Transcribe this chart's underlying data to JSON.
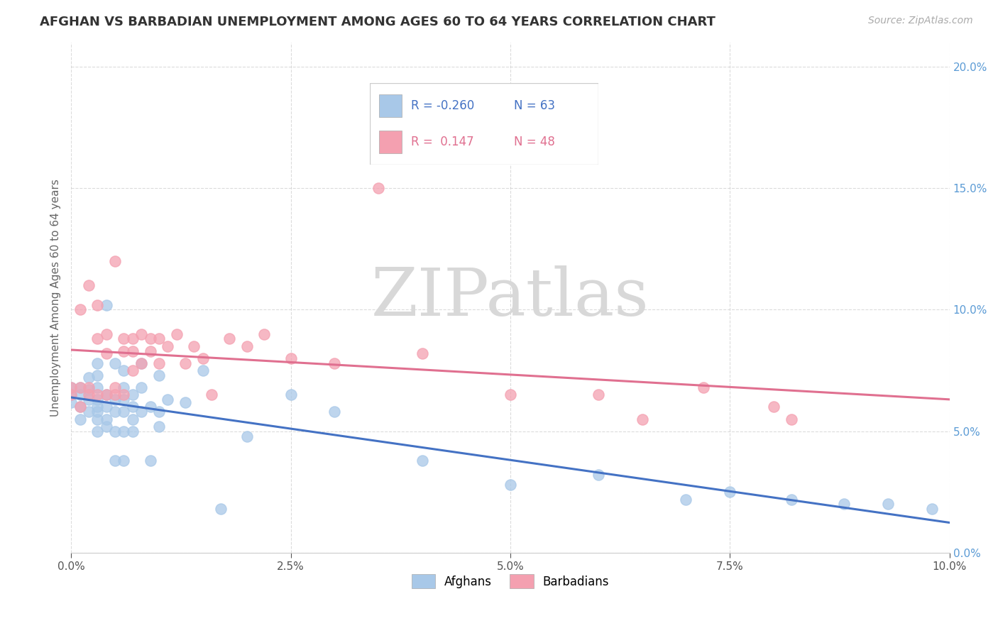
{
  "title": "AFGHAN VS BARBADIAN UNEMPLOYMENT AMONG AGES 60 TO 64 YEARS CORRELATION CHART",
  "source": "Source: ZipAtlas.com",
  "ylabel": "Unemployment Among Ages 60 to 64 years",
  "xmin": 0.0,
  "xmax": 0.1,
  "ymin": 0.0,
  "ymax": 0.21,
  "afghan_R": -0.26,
  "afghan_N": 63,
  "barbadian_R": 0.147,
  "barbadian_N": 48,
  "afghan_color": "#a8c8e8",
  "barbadian_color": "#f4a0b0",
  "afghan_line_color": "#4472c4",
  "barbadian_line_color": "#e07090",
  "background_color": "#ffffff",
  "afghan_scatter_x": [
    0.0,
    0.0,
    0.0,
    0.001,
    0.001,
    0.001,
    0.001,
    0.002,
    0.002,
    0.002,
    0.002,
    0.003,
    0.003,
    0.003,
    0.003,
    0.003,
    0.003,
    0.003,
    0.003,
    0.004,
    0.004,
    0.004,
    0.004,
    0.004,
    0.005,
    0.005,
    0.005,
    0.005,
    0.005,
    0.006,
    0.006,
    0.006,
    0.006,
    0.006,
    0.006,
    0.007,
    0.007,
    0.007,
    0.007,
    0.008,
    0.008,
    0.008,
    0.009,
    0.009,
    0.01,
    0.01,
    0.01,
    0.011,
    0.013,
    0.015,
    0.017,
    0.02,
    0.025,
    0.03,
    0.04,
    0.05,
    0.06,
    0.07,
    0.075,
    0.082,
    0.088,
    0.093,
    0.098
  ],
  "afghan_scatter_y": [
    0.065,
    0.068,
    0.062,
    0.055,
    0.06,
    0.065,
    0.068,
    0.058,
    0.063,
    0.067,
    0.072,
    0.05,
    0.055,
    0.058,
    0.06,
    0.063,
    0.068,
    0.073,
    0.078,
    0.052,
    0.055,
    0.06,
    0.065,
    0.102,
    0.038,
    0.05,
    0.058,
    0.063,
    0.078,
    0.038,
    0.05,
    0.058,
    0.063,
    0.068,
    0.075,
    0.05,
    0.055,
    0.06,
    0.065,
    0.058,
    0.068,
    0.078,
    0.038,
    0.06,
    0.052,
    0.058,
    0.073,
    0.063,
    0.062,
    0.075,
    0.018,
    0.048,
    0.065,
    0.058,
    0.038,
    0.028,
    0.032,
    0.022,
    0.025,
    0.022,
    0.02,
    0.02,
    0.018
  ],
  "barbadian_scatter_x": [
    0.0,
    0.0,
    0.001,
    0.001,
    0.001,
    0.002,
    0.002,
    0.002,
    0.003,
    0.003,
    0.003,
    0.004,
    0.004,
    0.004,
    0.005,
    0.005,
    0.005,
    0.006,
    0.006,
    0.006,
    0.007,
    0.007,
    0.007,
    0.008,
    0.008,
    0.009,
    0.009,
    0.01,
    0.01,
    0.011,
    0.012,
    0.013,
    0.014,
    0.015,
    0.016,
    0.018,
    0.02,
    0.022,
    0.025,
    0.03,
    0.035,
    0.04,
    0.05,
    0.06,
    0.065,
    0.072,
    0.08,
    0.082
  ],
  "barbadian_scatter_y": [
    0.065,
    0.068,
    0.06,
    0.1,
    0.068,
    0.065,
    0.11,
    0.068,
    0.065,
    0.088,
    0.102,
    0.065,
    0.082,
    0.09,
    0.065,
    0.12,
    0.068,
    0.065,
    0.083,
    0.088,
    0.075,
    0.083,
    0.088,
    0.078,
    0.09,
    0.083,
    0.088,
    0.078,
    0.088,
    0.085,
    0.09,
    0.078,
    0.085,
    0.08,
    0.065,
    0.088,
    0.085,
    0.09,
    0.08,
    0.078,
    0.15,
    0.082,
    0.065,
    0.065,
    0.055,
    0.068,
    0.06,
    0.055
  ]
}
